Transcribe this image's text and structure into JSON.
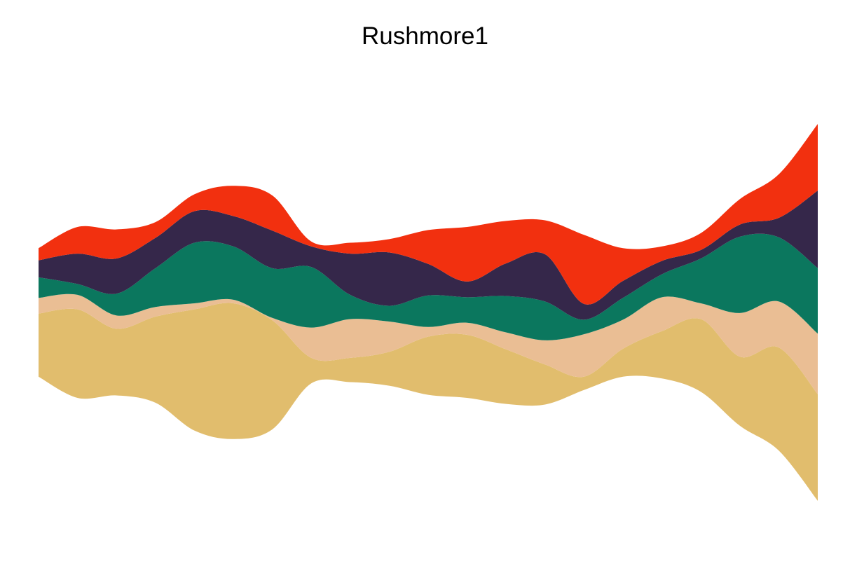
{
  "chart_data": {
    "type": "area",
    "title": "Rushmore1",
    "subtitle": "",
    "xlabel": "",
    "ylabel": "",
    "layout": "streamgraph",
    "grid": false,
    "legend": "none",
    "x": [
      1,
      2,
      3,
      4,
      5,
      6,
      7,
      8,
      9,
      10,
      11,
      12,
      13,
      14,
      15,
      16,
      17,
      18,
      19,
      20,
      21
    ],
    "series": [
      {
        "color": "#E1BD6D",
        "values": [
          5.2,
          7.3,
          5.5,
          7.1,
          10.0,
          11.2,
          9.0,
          2.1,
          2.0,
          2.8,
          4.8,
          5.2,
          4.5,
          3.3,
          1.1,
          2.3,
          3.9,
          6.0,
          5.7,
          8.5,
          8.8
        ]
      },
      {
        "color": "#EABE94",
        "values": [
          1.3,
          1.2,
          1.1,
          0.8,
          0.5,
          0.3,
          0.2,
          2.5,
          3.2,
          2.5,
          0.8,
          1.0,
          1.4,
          2.0,
          3.5,
          2.4,
          2.8,
          1.3,
          3.6,
          3.8,
          5.0
        ]
      },
      {
        "color": "#0B775E",
        "values": [
          1.7,
          0.9,
          1.8,
          3.2,
          5.0,
          4.4,
          4.1,
          5.0,
          2.0,
          1.3,
          2.6,
          2.1,
          3.0,
          3.2,
          1.2,
          1.8,
          1.9,
          3.7,
          6.3,
          5.3,
          5.4
        ]
      },
      {
        "color": "#35274A",
        "values": [
          1.4,
          2.5,
          2.9,
          2.5,
          2.6,
          2.5,
          3.1,
          1.7,
          3.4,
          4.4,
          2.6,
          1.3,
          2.7,
          3.9,
          1.3,
          1.4,
          1.1,
          0.7,
          1.0,
          1.6,
          6.4
        ]
      },
      {
        "color": "#F2300F",
        "values": [
          1.0,
          2.2,
          2.4,
          1.3,
          1.4,
          2.5,
          2.9,
          0.4,
          0.9,
          1.1,
          2.8,
          4.5,
          3.5,
          2.8,
          5.7,
          2.7,
          1.2,
          1.4,
          2.1,
          3.6,
          5.5
        ]
      }
    ]
  }
}
